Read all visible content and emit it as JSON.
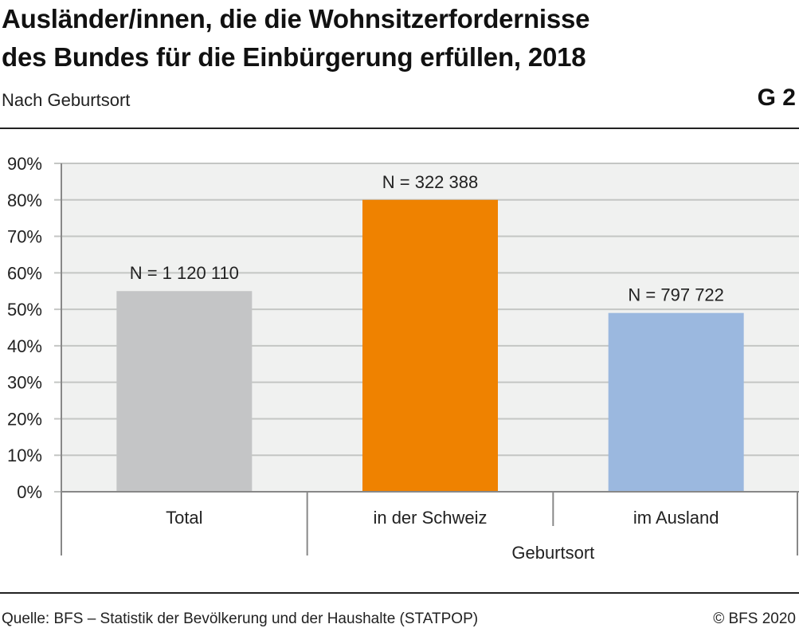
{
  "header": {
    "title_line1": "Ausländer/innen, die die Wohnsitzerfordernisse",
    "title_line2": "des Bundes für die Einbürgerung erfüllen, 2018",
    "subtitle": "Nach Geburtsort",
    "graphic_number": "G 2"
  },
  "footer": {
    "source": "Quelle: BFS – Statistik der Bevölkerung und der Haushalte (STATPOP)",
    "copyright": "© BFS 2020"
  },
  "colors": {
    "plot_background": "#f0f1f0",
    "grid": "#c4c6c4",
    "axis": "#888888",
    "text": "#222222"
  },
  "chart_data": {
    "type": "bar",
    "categories": [
      "Total",
      "in der Schweiz",
      "im Ausland"
    ],
    "values": [
      55,
      80,
      49
    ],
    "data_labels": [
      "N = 1 120 110",
      "N = 322 388",
      "N = 797 722"
    ],
    "bar_colors": [
      "#c4c5c6",
      "#ef8200",
      "#9bb8df"
    ],
    "yticks": [
      "0%",
      "10%",
      "20%",
      "30%",
      "40%",
      "50%",
      "60%",
      "70%",
      "80%",
      "90%"
    ],
    "ylim": [
      0,
      90
    ],
    "xlabel": "Geburtsort",
    "grid": true
  }
}
